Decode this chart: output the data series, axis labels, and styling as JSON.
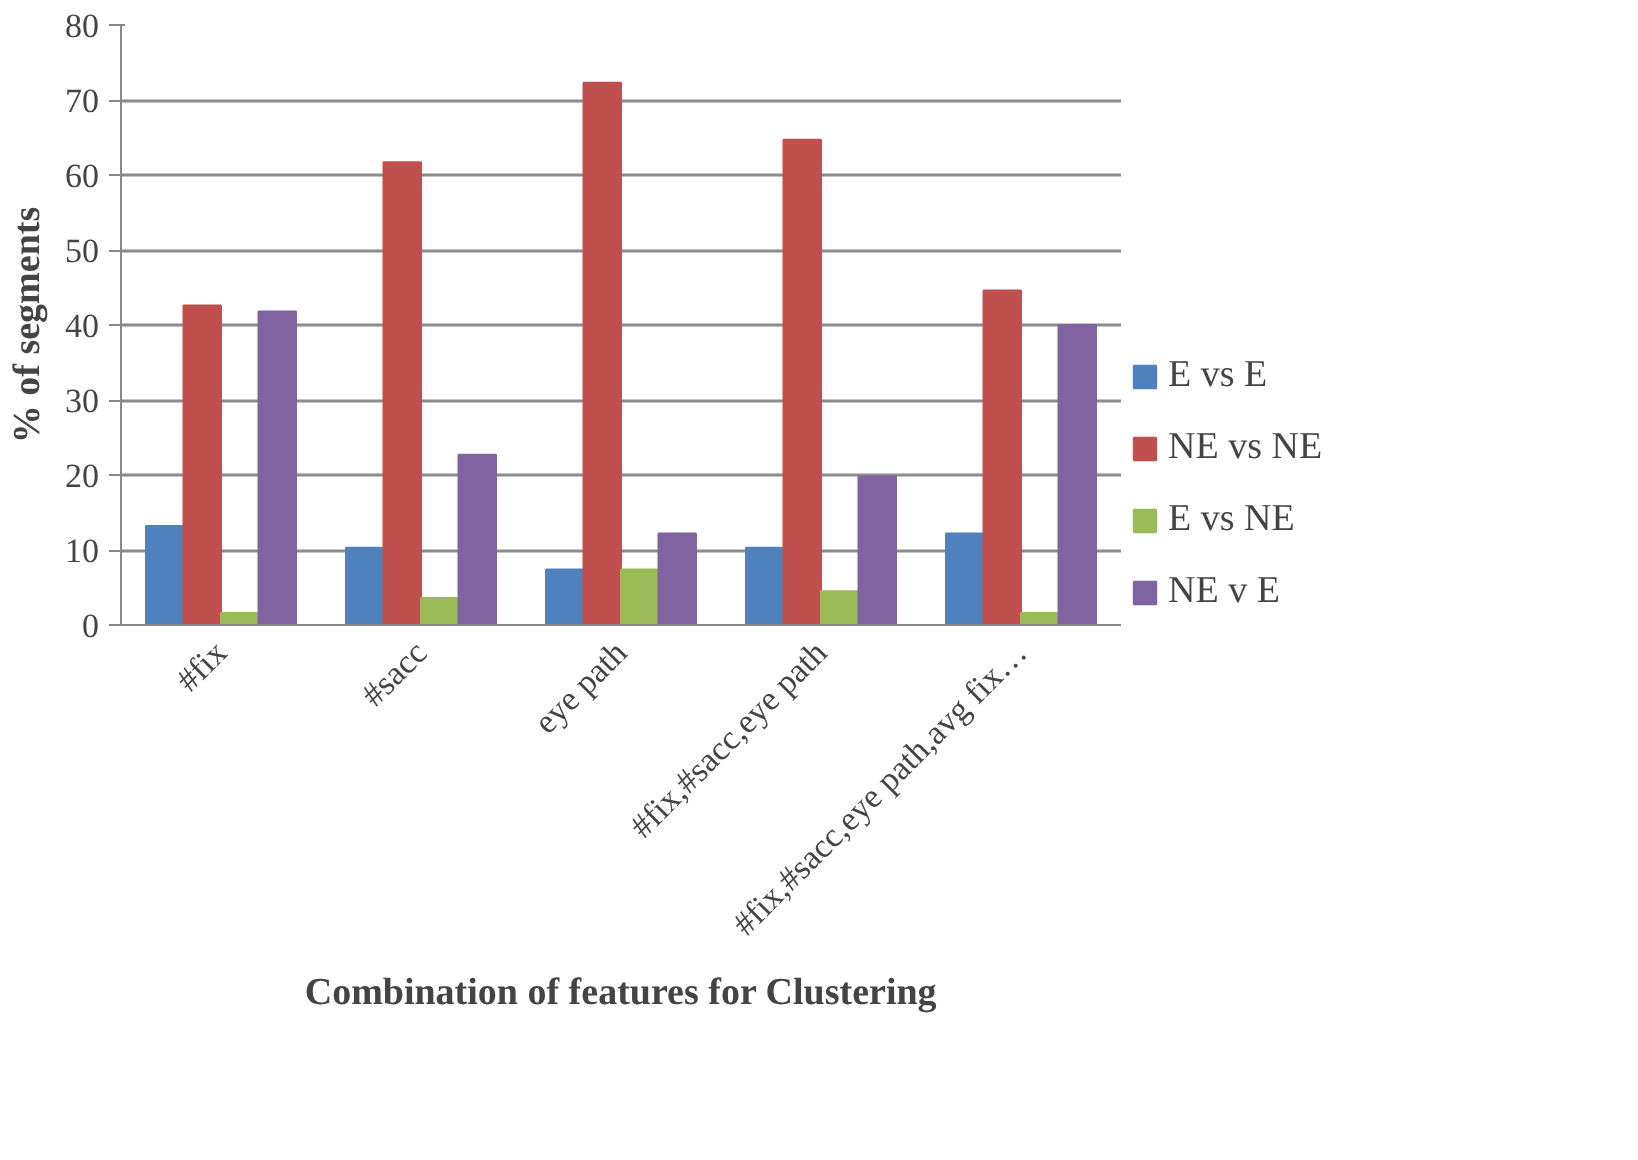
{
  "chart_data": {
    "type": "bar",
    "xlabel": "Combination of features for Clustering",
    "ylabel": "% of segments",
    "categories": [
      "#fix",
      "#sacc",
      "eye path",
      "#fix,#sacc,eye path",
      "#fix,#sacc,eye path,avg fix…"
    ],
    "series": [
      {
        "name": "E vs E",
        "color": "#4f81bd",
        "values": [
          13.2,
          10.3,
          7.4,
          10.3,
          12.2
        ]
      },
      {
        "name": "NE vs NE",
        "color": "#c0504d",
        "values": [
          42.6,
          61.7,
          72.3,
          64.7,
          44.6
        ]
      },
      {
        "name": "E vs NE",
        "color": "#9bbb59",
        "values": [
          1.6,
          3.6,
          7.4,
          4.5,
          1.6
        ]
      },
      {
        "name": "NE v E",
        "color": "#8064a2",
        "values": [
          41.8,
          22.7,
          12.2,
          19.8,
          40.0
        ]
      }
    ],
    "ylim": [
      0,
      80
    ],
    "yticks": [
      0,
      10,
      20,
      30,
      40,
      50,
      60,
      70,
      80
    ],
    "grid": "y",
    "legend": "right"
  }
}
